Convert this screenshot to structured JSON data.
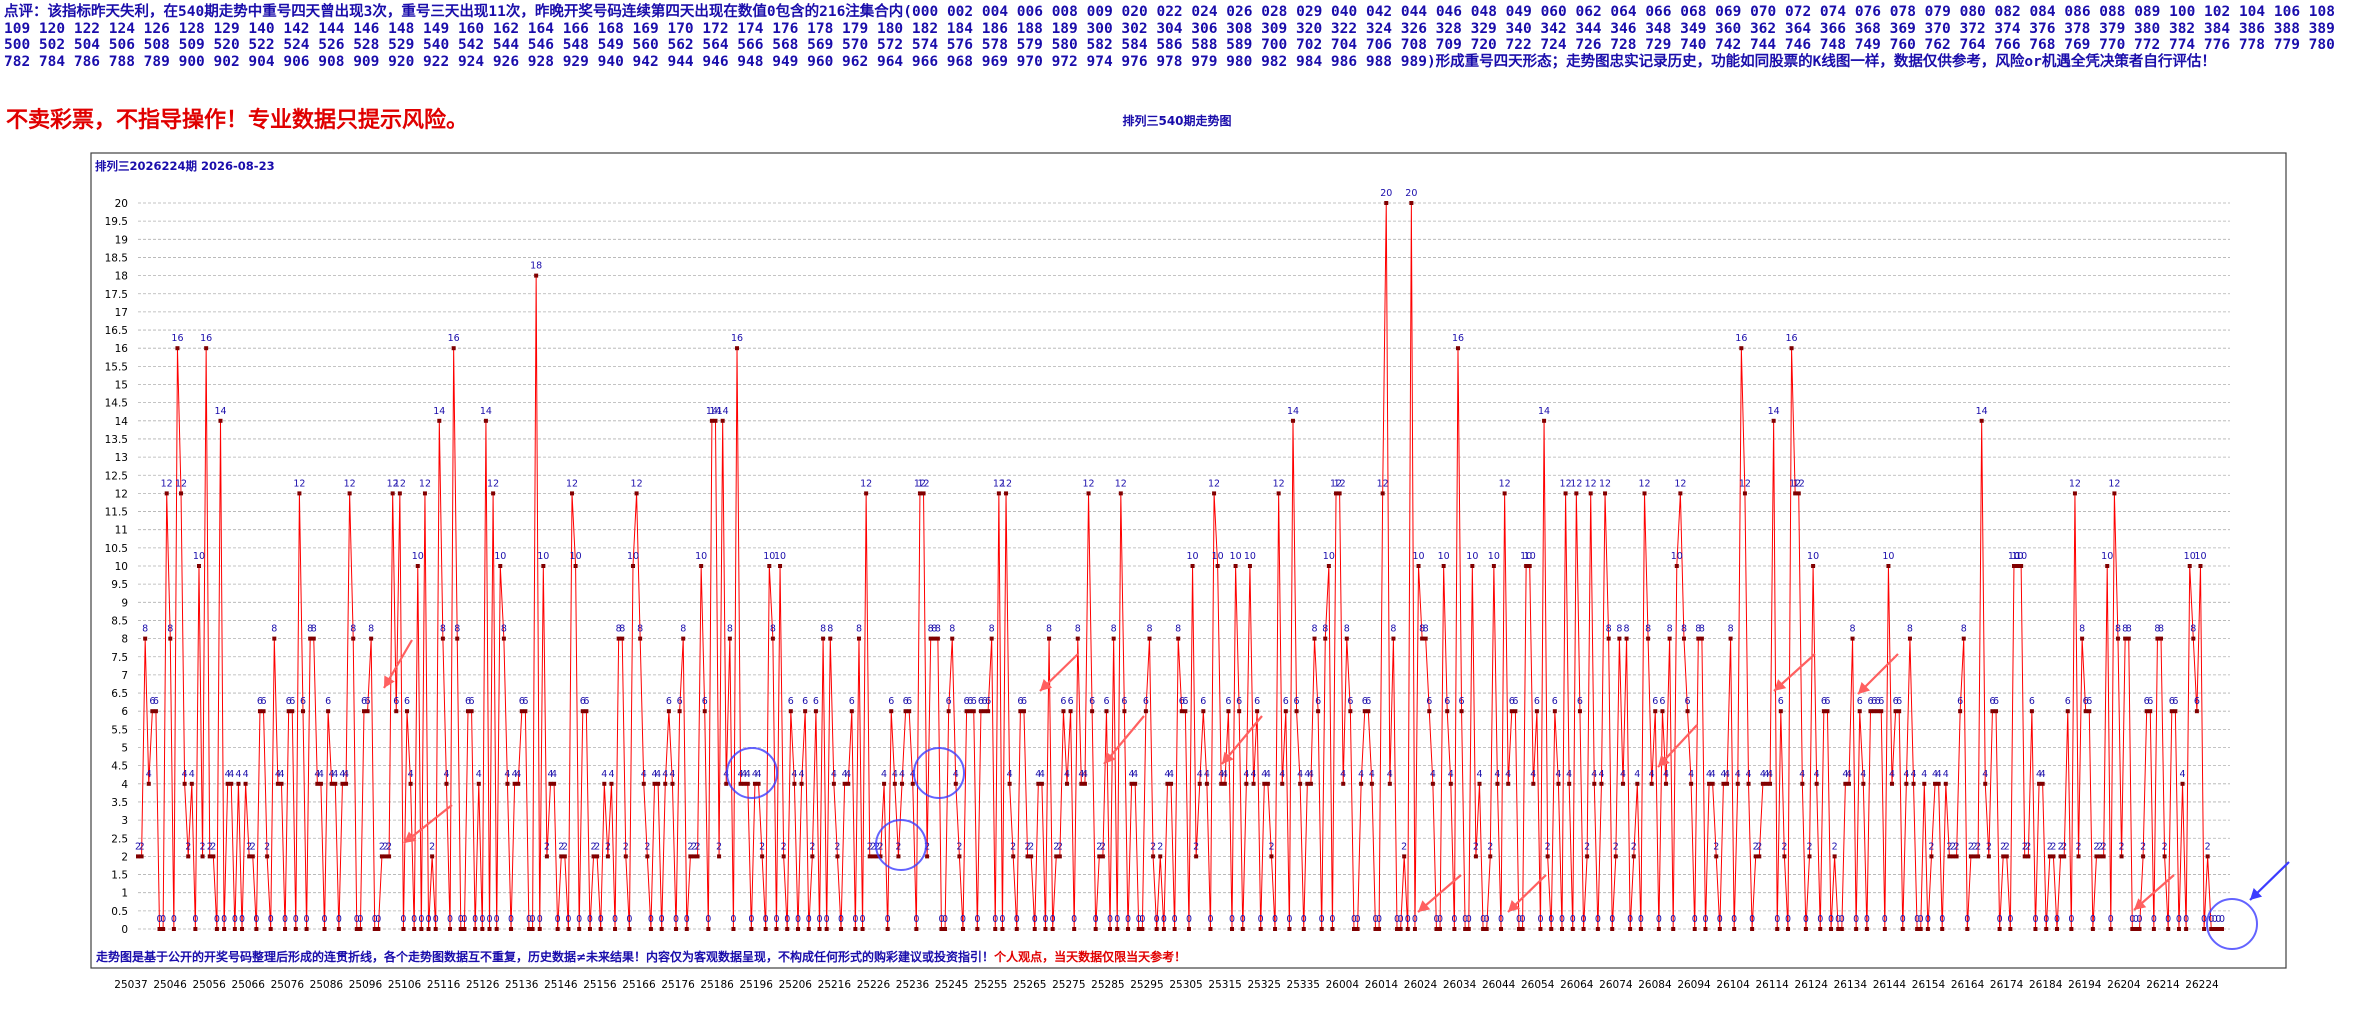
{
  "header": {
    "prefix": "点评：该指标昨天失利，在540期走势中重号四天曾出现3次，重号三天出现11次，昨晚开奖号码连续第四天出现在数值0包含的216注集合内(",
    "numbers": "000 002 004 006 008 009 020 022 024 026 028 029 040 042 044 046 048 049 060 062 064 066 068 069 070 072 074 076 078 079 080 082 084 086 088 089 100 102 104 106 108 109 120 122 124 126 128 129 140 142 144 146 148 149 160 162 164 166 168 169 170 172 174 176 178 179 180 182 184 186 188 189 300 302 304 306 308 309 320 322 324 326 328 329 340 342 344 346 348 349 360 362 364 366 368 369 370 372 374 376 378 379 380 382 384 386 388 389 500 502 504 506 508 509 520 522 524 526 528 529 540 542 544 546 548 549 560 562 564 566 568 569 570 572 574 576 578 579 580 582 584 586 588 589 700 702 704 706 708 709 720 722 724 726 728 729 740 742 744 746 748 749 760 762 764 766 768 769 770 772 774 776 778 779 780 782 784 786 788 789 900 902 904 906 908 909 920 922 924 926 928 929 940 942 944 946 948 949 960 962 964 966 968 969 970 972 974 976 978 979 980 982 984 986 988 989",
    "suffix": ")形成重号四天形态；走势图忠实记录历史，功能如同股票的K线图一样，数据仅供参考，风险or机遇全凭决策者自行评估！"
  },
  "warning": "不卖彩票，不指导操作！专业数据只提示风险。",
  "chart_title": "排列三540期走势图",
  "colors": {
    "line": "#ff0000",
    "point": "#800000",
    "label": "#1a0dab",
    "grid": "#b0b0b0",
    "arrow": "#ff6060",
    "circle": "#3c3cff",
    "note_red": "#e00000"
  },
  "chart_data": {
    "type": "line",
    "title": "排列三540期走势图",
    "subtitle": "排列三2026224期  2026-08-23",
    "ylim": [
      0,
      20
    ],
    "yticks": [
      "0",
      "0.5",
      "1",
      "1.5",
      "2",
      "2.5",
      "3",
      "3.5",
      "4",
      "4.5",
      "5",
      "5.5",
      "6",
      "6.5",
      "7",
      "7.5",
      "8",
      "8.5",
      "9",
      "9.5",
      "10",
      "10.5",
      "11",
      "11.5",
      "12",
      "12.5",
      "13",
      "13.5",
      "14",
      "14.5",
      "15",
      "15.5",
      "16",
      "16.5",
      "17",
      "17.5",
      "18",
      "18.5",
      "19",
      "19.5",
      "20"
    ],
    "xticks": [
      "25037",
      "25046",
      "25056",
      "25066",
      "25076",
      "25086",
      "25096",
      "25106",
      "25116",
      "25126",
      "25136",
      "25146",
      "25156",
      "25166",
      "25176",
      "25186",
      "25196",
      "25206",
      "25216",
      "25226",
      "25236",
      "25245",
      "25255",
      "25265",
      "25275",
      "25285",
      "25295",
      "25305",
      "25315",
      "25325",
      "25335",
      "26004",
      "26014",
      "26024",
      "26034",
      "26044",
      "26054",
      "26064",
      "26074",
      "26084",
      "26094",
      "26104",
      "26114",
      "26124",
      "26134",
      "26144",
      "26154",
      "26164",
      "26174",
      "26184",
      "26194",
      "26204",
      "26214",
      "26224"
    ],
    "grid": true,
    "series": [
      {
        "values": [
          2,
          2,
          8,
          4,
          6,
          6,
          0,
          0,
          12,
          8,
          0,
          16,
          12,
          4,
          2,
          4,
          0,
          10,
          2,
          16,
          2,
          2,
          0,
          14,
          0,
          4,
          4,
          0,
          4,
          0,
          4,
          2,
          2,
          0,
          6,
          6,
          2,
          0,
          8,
          4,
          4,
          0,
          6,
          6,
          0,
          12,
          6,
          0,
          8,
          8,
          4,
          4,
          0,
          6,
          4,
          4,
          0,
          4,
          4,
          12,
          8,
          0,
          0,
          6,
          6,
          8,
          0,
          0,
          2,
          2,
          2,
          12,
          6,
          12,
          0,
          6,
          4,
          0,
          10,
          0,
          12,
          0,
          2,
          0,
          14,
          8,
          4,
          0,
          16,
          8,
          0,
          0,
          6,
          6,
          0,
          4,
          0,
          14,
          0,
          12,
          0,
          10,
          8,
          4,
          0,
          4,
          4,
          6,
          6,
          0,
          0,
          18,
          0,
          10,
          2,
          4,
          4,
          0,
          2,
          2,
          0,
          12,
          10,
          0,
          6,
          6,
          0,
          2,
          2,
          0,
          4,
          2,
          4,
          0,
          8,
          8,
          2,
          0,
          10,
          12,
          8,
          4,
          2,
          0,
          4,
          4,
          0,
          4,
          6,
          4,
          0,
          6,
          8,
          0,
          2,
          2,
          2,
          10,
          6,
          0,
          14,
          14,
          2,
          14,
          4,
          8,
          0,
          16,
          4,
          4,
          4,
          0,
          4,
          4,
          2,
          0,
          10,
          8,
          0,
          10,
          2,
          0,
          6,
          4,
          0,
          4,
          6,
          0,
          2,
          6,
          0,
          8,
          0,
          8,
          4,
          2,
          0,
          4,
          4,
          6,
          0,
          8,
          0,
          12,
          2,
          2,
          2,
          2,
          4,
          0,
          6,
          4,
          2,
          4,
          6,
          6,
          4,
          0,
          12,
          12,
          2,
          8,
          8,
          8,
          0,
          0,
          6,
          8,
          4,
          2,
          0,
          6,
          6,
          6,
          0,
          6,
          6,
          6,
          8,
          0,
          12,
          0,
          12,
          4,
          2,
          0,
          6,
          6,
          2,
          2,
          0,
          4,
          4,
          0,
          8,
          0,
          2,
          2,
          6,
          4,
          6,
          0,
          8,
          4,
          4,
          12,
          6,
          0,
          2,
          2,
          6,
          0,
          8,
          0,
          12,
          6,
          0,
          4,
          4,
          0,
          0,
          6,
          8,
          2,
          0,
          2,
          0,
          4,
          4,
          0,
          8,
          6,
          6,
          0,
          10,
          2,
          4,
          6,
          4,
          0,
          12,
          10,
          4,
          4,
          6,
          0,
          10,
          6,
          0,
          4,
          10,
          4,
          6,
          0,
          4,
          4,
          2,
          0,
          12,
          4,
          6,
          0,
          14,
          6,
          4,
          0,
          4,
          4,
          8,
          6,
          0,
          8,
          10,
          0,
          12,
          12,
          4,
          8,
          6,
          0,
          0,
          4,
          6,
          6,
          4,
          0,
          0,
          12,
          20,
          4,
          8,
          0,
          0,
          2,
          0,
          20,
          0,
          10,
          8,
          8,
          6,
          4,
          0,
          0,
          10,
          6,
          4,
          0,
          16,
          6,
          0,
          0,
          10,
          2,
          4,
          0,
          0,
          2,
          10,
          4,
          0,
          12,
          4,
          6,
          6,
          0,
          0,
          10,
          10,
          4,
          6,
          0,
          14,
          2,
          0,
          6,
          4,
          0,
          12,
          4,
          0,
          12,
          6,
          0,
          2,
          12,
          4,
          0,
          4,
          12,
          8,
          0,
          2,
          8,
          4,
          8,
          0,
          2,
          4,
          0,
          12,
          8,
          4,
          6,
          0,
          6,
          4,
          8,
          0,
          10,
          12,
          8,
          6,
          4,
          0,
          8,
          8,
          0,
          4,
          4,
          2,
          0,
          4,
          4,
          8,
          0,
          4,
          16,
          12,
          4,
          0,
          2,
          2,
          4,
          4,
          4,
          14,
          0,
          6,
          2,
          0,
          16,
          12,
          12,
          4,
          0,
          2,
          10,
          4,
          0,
          6,
          6,
          0,
          2,
          0,
          0,
          4,
          4,
          8,
          0,
          6,
          4,
          0,
          6,
          6,
          6,
          6,
          0,
          10,
          4,
          6,
          6,
          0,
          4,
          8,
          4,
          0,
          0,
          4,
          0,
          2,
          4,
          4,
          0,
          4,
          2,
          2,
          2,
          6,
          8,
          0,
          2,
          2,
          2,
          14,
          4,
          2,
          6,
          6,
          0,
          2,
          2,
          0,
          10,
          10,
          10,
          2,
          2,
          6,
          0,
          4,
          4,
          0,
          2,
          2,
          0,
          2,
          2,
          6,
          0,
          12,
          2,
          8,
          6,
          6,
          0,
          2,
          2,
          2,
          10,
          0,
          12,
          8,
          2,
          8,
          8,
          0,
          0,
          0,
          2,
          6,
          6,
          0,
          8,
          8,
          2,
          0,
          6,
          6,
          0,
          4,
          0,
          10,
          8,
          6,
          10,
          0,
          2,
          0,
          0,
          0,
          0
        ]
      }
    ],
    "annotations": {
      "note_blue": "走势图是基于公开的开奖号码整理后形成的连贯折线，各个走势图数据互不重复，历史数据≠未来结果！内容仅为客观数据呈现，不构成任何形式的购彩建议或投资指引！",
      "note_red": "个人观点，当天数据仅限当天参考！"
    }
  }
}
